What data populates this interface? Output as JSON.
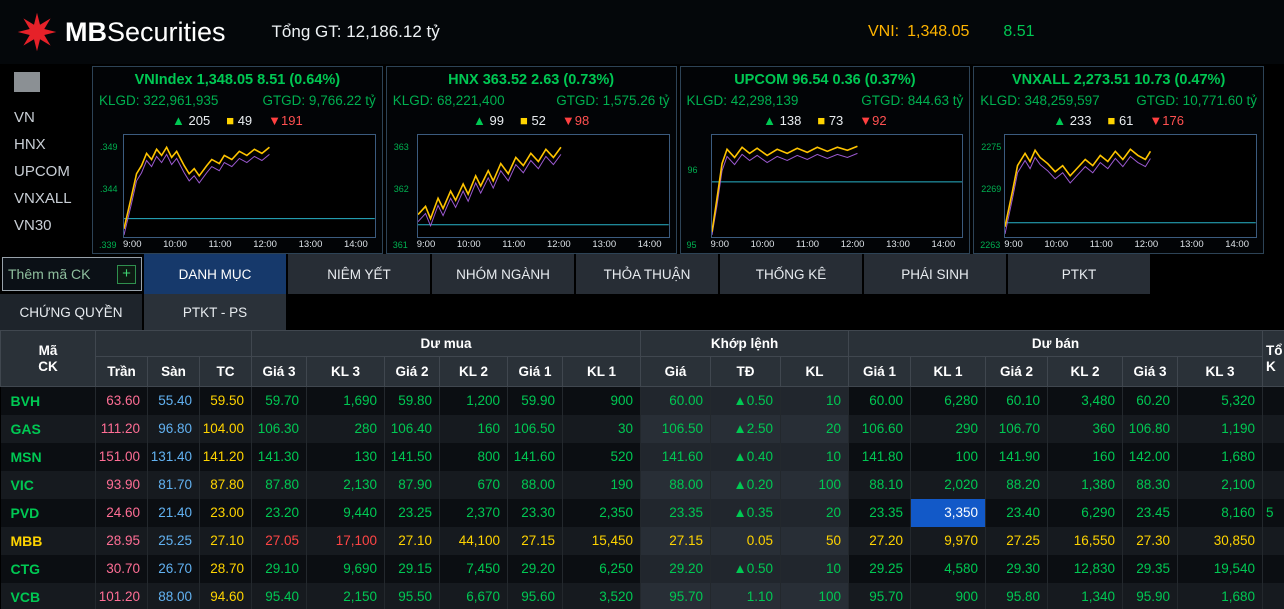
{
  "header": {
    "brand_mb": "MB",
    "brand_securities": "Securities",
    "total_gt": "Tổng GT: 12,186.12 tỷ",
    "vni_label": "VNI:",
    "vni_value": "1,348.05",
    "vni_change": "8.51"
  },
  "sidebar": {
    "items": [
      "VN",
      "HNX",
      "UPCOM",
      "VNXALL",
      "VN30"
    ]
  },
  "indices": [
    {
      "name": "VNIndex",
      "value": "1,348.05",
      "change": "8.51",
      "pct": "(0.64%)",
      "klgd_label": "KLGD:",
      "klgd": "322,961,935",
      "gtgd_label": "GTGD:",
      "gtgd": "9,766.22 tỷ",
      "up": "205",
      "ref": "49",
      "down": "191",
      "yticks": [
        ".349",
        ".344",
        ".339"
      ],
      "xticks": [
        "9:00",
        "10:00",
        "11:00",
        "12:00",
        "13:00",
        "14:00"
      ],
      "ref_y": 82,
      "spark": [
        [
          0,
          92
        ],
        [
          3,
          60
        ],
        [
          5,
          38
        ],
        [
          7,
          30
        ],
        [
          9,
          18
        ],
        [
          11,
          24
        ],
        [
          13,
          14
        ],
        [
          15,
          20
        ],
        [
          17,
          12
        ],
        [
          19,
          22
        ],
        [
          21,
          16
        ],
        [
          24,
          30
        ],
        [
          26,
          38
        ],
        [
          28,
          33
        ],
        [
          30,
          40
        ],
        [
          33,
          30
        ],
        [
          35,
          24
        ],
        [
          38,
          28
        ],
        [
          40,
          20
        ],
        [
          43,
          24
        ],
        [
          46,
          16
        ],
        [
          49,
          20
        ],
        [
          52,
          14
        ],
        [
          55,
          18
        ],
        [
          58,
          12
        ]
      ]
    },
    {
      "name": "HNX",
      "value": "363.52",
      "change": "2.63",
      "pct": "(0.73%)",
      "klgd_label": "KLGD:",
      "klgd": "68,221,400",
      "gtgd_label": "GTGD:",
      "gtgd": "1,575.26 tỷ",
      "up": "99",
      "ref": "52",
      "down": "98",
      "yticks": [
        "363",
        "362",
        "361"
      ],
      "xticks": [
        "9:00",
        "10:00",
        "11:00",
        "12:00",
        "13:00",
        "14:00"
      ],
      "ref_y": 88,
      "spark": [
        [
          0,
          78
        ],
        [
          3,
          70
        ],
        [
          5,
          82
        ],
        [
          8,
          62
        ],
        [
          10,
          72
        ],
        [
          13,
          55
        ],
        [
          15,
          64
        ],
        [
          18,
          48
        ],
        [
          20,
          58
        ],
        [
          23,
          40
        ],
        [
          25,
          50
        ],
        [
          28,
          35
        ],
        [
          30,
          45
        ],
        [
          33,
          28
        ],
        [
          36,
          38
        ],
        [
          39,
          22
        ],
        [
          42,
          30
        ],
        [
          45,
          18
        ],
        [
          48,
          26
        ],
        [
          51,
          14
        ],
        [
          54,
          22
        ],
        [
          57,
          12
        ]
      ]
    },
    {
      "name": "UPCOM",
      "value": "96.54",
      "change": "0.36",
      "pct": "(0.37%)",
      "klgd_label": "KLGD:",
      "klgd": "42,298,139",
      "gtgd_label": "GTGD:",
      "gtgd": "844.63 tỷ",
      "up": "138",
      "ref": "73",
      "down": "92",
      "yticks": [
        "96",
        "95"
      ],
      "xticks": [
        "9:00",
        "10:00",
        "11:00",
        "12:00",
        "13:00",
        "14:00"
      ],
      "ref_y": 46,
      "spark": [
        [
          0,
          95
        ],
        [
          2,
          62
        ],
        [
          4,
          28
        ],
        [
          6,
          14
        ],
        [
          9,
          22
        ],
        [
          12,
          12
        ],
        [
          15,
          18
        ],
        [
          18,
          13
        ],
        [
          22,
          20
        ],
        [
          26,
          14
        ],
        [
          30,
          18
        ],
        [
          34,
          13
        ],
        [
          38,
          17
        ],
        [
          42,
          12
        ],
        [
          46,
          16
        ],
        [
          50,
          12
        ],
        [
          54,
          15
        ],
        [
          58,
          11
        ]
      ]
    },
    {
      "name": "VNXALL",
      "value": "2,273.51",
      "change": "10.73",
      "pct": "(0.47%)",
      "klgd_label": "KLGD:",
      "klgd": "348,259,597",
      "gtgd_label": "GTGD:",
      "gtgd": "10,771.60 tỷ",
      "up": "233",
      "ref": "61",
      "down": "176",
      "yticks": [
        "2275",
        "2269",
        "2263"
      ],
      "xticks": [
        "9:00",
        "10:00",
        "11:00",
        "12:00",
        "13:00",
        "14:00"
      ],
      "ref_y": 86,
      "spark": [
        [
          0,
          90
        ],
        [
          3,
          55
        ],
        [
          5,
          30
        ],
        [
          8,
          18
        ],
        [
          10,
          26
        ],
        [
          12,
          15
        ],
        [
          14,
          22
        ],
        [
          17,
          28
        ],
        [
          20,
          36
        ],
        [
          23,
          30
        ],
        [
          26,
          40
        ],
        [
          29,
          32
        ],
        [
          32,
          24
        ],
        [
          35,
          30
        ],
        [
          38,
          20
        ],
        [
          41,
          26
        ],
        [
          44,
          16
        ],
        [
          47,
          24
        ],
        [
          50,
          14
        ],
        [
          53,
          20
        ],
        [
          56,
          24
        ],
        [
          58,
          16
        ]
      ]
    }
  ],
  "tabs": {
    "add_placeholder": "Thêm mã CK",
    "add_button": "+",
    "row1": [
      "DANH MỤC",
      "NIÊM YẾT",
      "NHÓM NGÀNH",
      "THỎA THUẬN",
      "THỐNG KÊ",
      "PHÁI SINH",
      "PTKT"
    ],
    "row2": [
      "CHỨNG QUYỀN",
      "PTKT - PS"
    ],
    "active": "DANH MỤC"
  },
  "table": {
    "h": {
      "ma": "Mã",
      "ck": "CK",
      "cut_top": "Tổ",
      "cut_bot": "K"
    },
    "groups": {
      "du_mua": "Dư mua",
      "khop_lenh": "Khớp lệnh",
      "du_ban": "Dư bán"
    },
    "subcols": [
      "Trần",
      "Sàn",
      "TC",
      "Giá 3",
      "KL 3",
      "Giá 2",
      "KL 2",
      "Giá 1",
      "KL 1",
      "Giá",
      "TĐ",
      "KL",
      "Giá 1",
      "KL 1",
      "Giá 2",
      "KL 2",
      "Giá 3",
      "KL 3"
    ],
    "rows": [
      {
        "sym": "BVH",
        "symc": "g",
        "cut": "",
        "cells": [
          [
            "63.60",
            "ce"
          ],
          [
            "55.40",
            "fl"
          ],
          [
            "59.50",
            "tc"
          ],
          [
            "59.70",
            "g"
          ],
          [
            "1,690",
            "g"
          ],
          [
            "59.80",
            "g"
          ],
          [
            "1,200",
            "g"
          ],
          [
            "59.90",
            "g"
          ],
          [
            "900",
            "g"
          ],
          [
            "60.00",
            "g"
          ],
          [
            "▲0.50",
            "g"
          ],
          [
            "10",
            "g"
          ],
          [
            "60.00",
            "g"
          ],
          [
            "6,280",
            "g"
          ],
          [
            "60.10",
            "g"
          ],
          [
            "3,480",
            "g"
          ],
          [
            "60.20",
            "g"
          ],
          [
            "5,320",
            "g"
          ]
        ]
      },
      {
        "sym": "GAS",
        "symc": "g",
        "cut": "",
        "cells": [
          [
            "111.20",
            "ce"
          ],
          [
            "96.80",
            "fl"
          ],
          [
            "104.00",
            "tc"
          ],
          [
            "106.30",
            "g"
          ],
          [
            "280",
            "g"
          ],
          [
            "106.40",
            "g"
          ],
          [
            "160",
            "g"
          ],
          [
            "106.50",
            "g"
          ],
          [
            "30",
            "g"
          ],
          [
            "106.50",
            "g"
          ],
          [
            "▲2.50",
            "g"
          ],
          [
            "20",
            "g"
          ],
          [
            "106.60",
            "g"
          ],
          [
            "290",
            "g"
          ],
          [
            "106.70",
            "g"
          ],
          [
            "360",
            "g"
          ],
          [
            "106.80",
            "g"
          ],
          [
            "1,190",
            "g"
          ]
        ]
      },
      {
        "sym": "MSN",
        "symc": "g",
        "cut": "",
        "cells": [
          [
            "151.00",
            "ce"
          ],
          [
            "131.40",
            "fl"
          ],
          [
            "141.20",
            "tc"
          ],
          [
            "141.30",
            "g"
          ],
          [
            "130",
            "g"
          ],
          [
            "141.50",
            "g"
          ],
          [
            "800",
            "g"
          ],
          [
            "141.60",
            "g"
          ],
          [
            "520",
            "g"
          ],
          [
            "141.60",
            "g"
          ],
          [
            "▲0.40",
            "g"
          ],
          [
            "10",
            "g"
          ],
          [
            "141.80",
            "g"
          ],
          [
            "100",
            "g"
          ],
          [
            "141.90",
            "g"
          ],
          [
            "160",
            "g"
          ],
          [
            "142.00",
            "g"
          ],
          [
            "1,680",
            "g"
          ]
        ]
      },
      {
        "sym": "VIC",
        "symc": "g",
        "cut": "",
        "cells": [
          [
            "93.90",
            "ce"
          ],
          [
            "81.70",
            "fl"
          ],
          [
            "87.80",
            "tc"
          ],
          [
            "87.80",
            "g"
          ],
          [
            "2,130",
            "g"
          ],
          [
            "87.90",
            "g"
          ],
          [
            "670",
            "g"
          ],
          [
            "88.00",
            "g"
          ],
          [
            "190",
            "g"
          ],
          [
            "88.00",
            "g"
          ],
          [
            "▲0.20",
            "g"
          ],
          [
            "100",
            "g"
          ],
          [
            "88.10",
            "g"
          ],
          [
            "2,020",
            "g"
          ],
          [
            "88.20",
            "g"
          ],
          [
            "1,380",
            "g"
          ],
          [
            "88.30",
            "g"
          ],
          [
            "2,100",
            "g"
          ]
        ]
      },
      {
        "sym": "PVD",
        "symc": "g",
        "cut": "5",
        "cells": [
          [
            "24.60",
            "ce"
          ],
          [
            "21.40",
            "fl"
          ],
          [
            "23.00",
            "tc"
          ],
          [
            "23.20",
            "g"
          ],
          [
            "9,440",
            "g"
          ],
          [
            "23.25",
            "g"
          ],
          [
            "2,370",
            "g"
          ],
          [
            "23.30",
            "g"
          ],
          [
            "2,350",
            "g"
          ],
          [
            "23.35",
            "g"
          ],
          [
            "▲0.35",
            "g"
          ],
          [
            "20",
            "g"
          ],
          [
            "23.35",
            "g"
          ],
          [
            "3,350",
            "w",
            "sel"
          ],
          [
            "23.40",
            "g"
          ],
          [
            "6,290",
            "g"
          ],
          [
            "23.45",
            "g"
          ],
          [
            "8,160",
            "g"
          ]
        ]
      },
      {
        "sym": "MBB",
        "symc": "y",
        "cut": "",
        "cells": [
          [
            "28.95",
            "ce"
          ],
          [
            "25.25",
            "fl"
          ],
          [
            "27.10",
            "tc"
          ],
          [
            "27.05",
            "r"
          ],
          [
            "17,100",
            "r"
          ],
          [
            "27.10",
            "y"
          ],
          [
            "44,100",
            "y"
          ],
          [
            "27.15",
            "y"
          ],
          [
            "15,450",
            "y"
          ],
          [
            "27.15",
            "y"
          ],
          [
            "0.05",
            "y"
          ],
          [
            "50",
            "y"
          ],
          [
            "27.20",
            "y"
          ],
          [
            "9,970",
            "y"
          ],
          [
            "27.25",
            "y"
          ],
          [
            "16,550",
            "y"
          ],
          [
            "27.30",
            "y"
          ],
          [
            "30,850",
            "y"
          ]
        ]
      },
      {
        "sym": "CTG",
        "symc": "g",
        "cut": "",
        "cells": [
          [
            "30.70",
            "ce"
          ],
          [
            "26.70",
            "fl"
          ],
          [
            "28.70",
            "tc"
          ],
          [
            "29.10",
            "g"
          ],
          [
            "9,690",
            "g"
          ],
          [
            "29.15",
            "g"
          ],
          [
            "7,450",
            "g"
          ],
          [
            "29.20",
            "g"
          ],
          [
            "6,250",
            "g"
          ],
          [
            "29.20",
            "g"
          ],
          [
            "▲0.50",
            "g"
          ],
          [
            "10",
            "g"
          ],
          [
            "29.25",
            "g"
          ],
          [
            "4,580",
            "g"
          ],
          [
            "29.30",
            "g"
          ],
          [
            "12,830",
            "g"
          ],
          [
            "29.35",
            "g"
          ],
          [
            "19,540",
            "g"
          ]
        ]
      },
      {
        "sym": "VCB",
        "symc": "g",
        "cut": "",
        "cells": [
          [
            "101.20",
            "ce"
          ],
          [
            "88.00",
            "fl"
          ],
          [
            "94.60",
            "tc"
          ],
          [
            "95.40",
            "g"
          ],
          [
            "2,150",
            "g"
          ],
          [
            "95.50",
            "g"
          ],
          [
            "6,670",
            "g"
          ],
          [
            "95.60",
            "g"
          ],
          [
            "3,520",
            "g"
          ],
          [
            "95.70",
            "g"
          ],
          [
            "1.10",
            "g"
          ],
          [
            "100",
            "g"
          ],
          [
            "95.70",
            "g"
          ],
          [
            "900",
            "g"
          ],
          [
            "95.80",
            "g"
          ],
          [
            "1,340",
            "g"
          ],
          [
            "95.90",
            "g"
          ],
          [
            "1,680",
            "g"
          ]
        ]
      }
    ]
  }
}
